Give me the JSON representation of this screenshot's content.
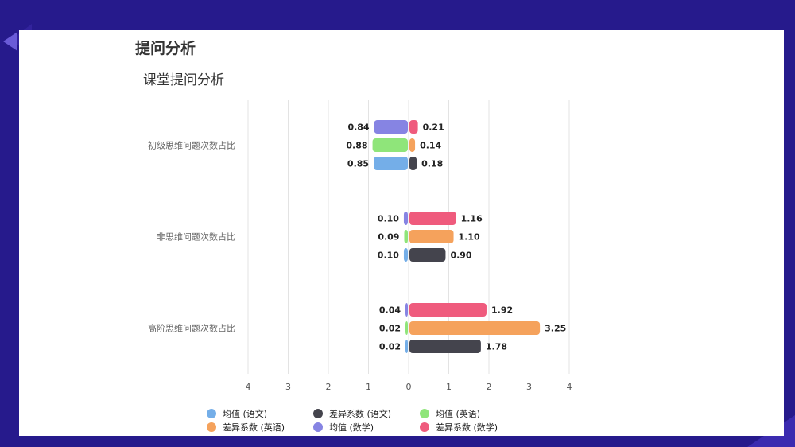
{
  "page": {
    "title": "提问分析",
    "chart_title": "课堂提问分析"
  },
  "chart_data": {
    "type": "bar",
    "orientation": "horizontal-diverging",
    "title": "课堂提问分析",
    "categories": [
      "初级思维问题次数占比",
      "非思维问题次数占比",
      "高阶思维问题次数占比"
    ],
    "x_ticks": [
      "4",
      "3",
      "2",
      "1",
      "0",
      "1",
      "2",
      "3",
      "4"
    ],
    "xlim": [
      -4,
      4
    ],
    "grid": true,
    "legend_position": "bottom",
    "series": [
      {
        "name": "均值 (语文)",
        "color": "#74aee8",
        "side": "left",
        "values": [
          0.85,
          0.1,
          0.02
        ]
      },
      {
        "name": "差异系数 (语文)",
        "color": "#44444d",
        "side": "right",
        "values": [
          0.18,
          0.9,
          1.78
        ]
      },
      {
        "name": "均值 (英语)",
        "color": "#8fe57a",
        "side": "left",
        "values": [
          0.88,
          0.09,
          0.02
        ]
      },
      {
        "name": "差异系数 (英语)",
        "color": "#f5a25c",
        "side": "right",
        "values": [
          0.14,
          1.1,
          3.25
        ]
      },
      {
        "name": "均值 (数学)",
        "color": "#8684e3",
        "side": "left",
        "values": [
          0.84,
          0.1,
          0.04
        ]
      },
      {
        "name": "差异系数 (数学)",
        "color": "#ef5b7d",
        "side": "right",
        "values": [
          0.21,
          1.16,
          1.92
        ]
      }
    ],
    "value_labels": {
      "left": [
        [
          "0.84",
          "0.88",
          "0.85"
        ],
        [
          "0.10",
          "0.09",
          "0.10"
        ],
        [
          "0.04",
          "0.02",
          "0.02"
        ]
      ],
      "right": [
        [
          "0.21",
          "0.14",
          "0.18"
        ],
        [
          "1.16",
          "1.10",
          "0.90"
        ],
        [
          "1.92",
          "3.25",
          "1.78"
        ]
      ]
    }
  }
}
